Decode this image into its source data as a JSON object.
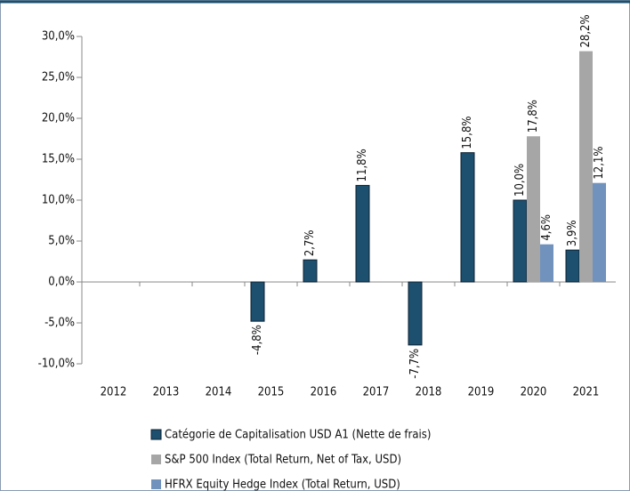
{
  "chart_data": {
    "type": "bar",
    "categories": [
      "2012",
      "2013",
      "2014",
      "2015",
      "2016",
      "2017",
      "2018",
      "2019",
      "2020",
      "2021"
    ],
    "series": [
      {
        "name": "Catégorie de Capitalisation USD A1 (Nette de frais)",
        "color": "#1d4f6e",
        "values": [
          null,
          null,
          null,
          -4.8,
          2.7,
          11.8,
          -7.7,
          15.8,
          10.0,
          3.9
        ],
        "value_labels": [
          null,
          null,
          null,
          "-4,8%",
          "2,7%",
          "11,8%",
          "-7,7%",
          "15,8%",
          "10,0%",
          "3,9%"
        ]
      },
      {
        "name": "S&P 500 Index (Total Return, Net of Tax, USD)",
        "color": "#a6a6a6",
        "values": [
          null,
          null,
          null,
          null,
          null,
          null,
          null,
          null,
          17.8,
          28.2
        ],
        "value_labels": [
          null,
          null,
          null,
          null,
          null,
          null,
          null,
          null,
          "17,8%",
          "28,2%"
        ]
      },
      {
        "name": "HFRX Equity Hedge Index (Total Return, USD)",
        "color": "#7092bd",
        "values": [
          null,
          null,
          null,
          null,
          null,
          null,
          null,
          null,
          4.6,
          12.1
        ],
        "value_labels": [
          null,
          null,
          null,
          null,
          null,
          null,
          null,
          null,
          "4,6%",
          "12,1%"
        ]
      }
    ],
    "ylim": [
      -10,
      30
    ],
    "yticks": [
      {
        "value": -10,
        "label": "-10,0%"
      },
      {
        "value": -5,
        "label": "-5,0%"
      },
      {
        "value": 0,
        "label": "0,0%"
      },
      {
        "value": 5,
        "label": "5,0%"
      },
      {
        "value": 10,
        "label": "10,0%"
      },
      {
        "value": 15,
        "label": "15,0%"
      },
      {
        "value": 20,
        "label": "20,0%"
      },
      {
        "value": 25,
        "label": "25,0%"
      },
      {
        "value": 30,
        "label": "30,0%"
      }
    ],
    "grid": false,
    "legend": "bottom"
  }
}
